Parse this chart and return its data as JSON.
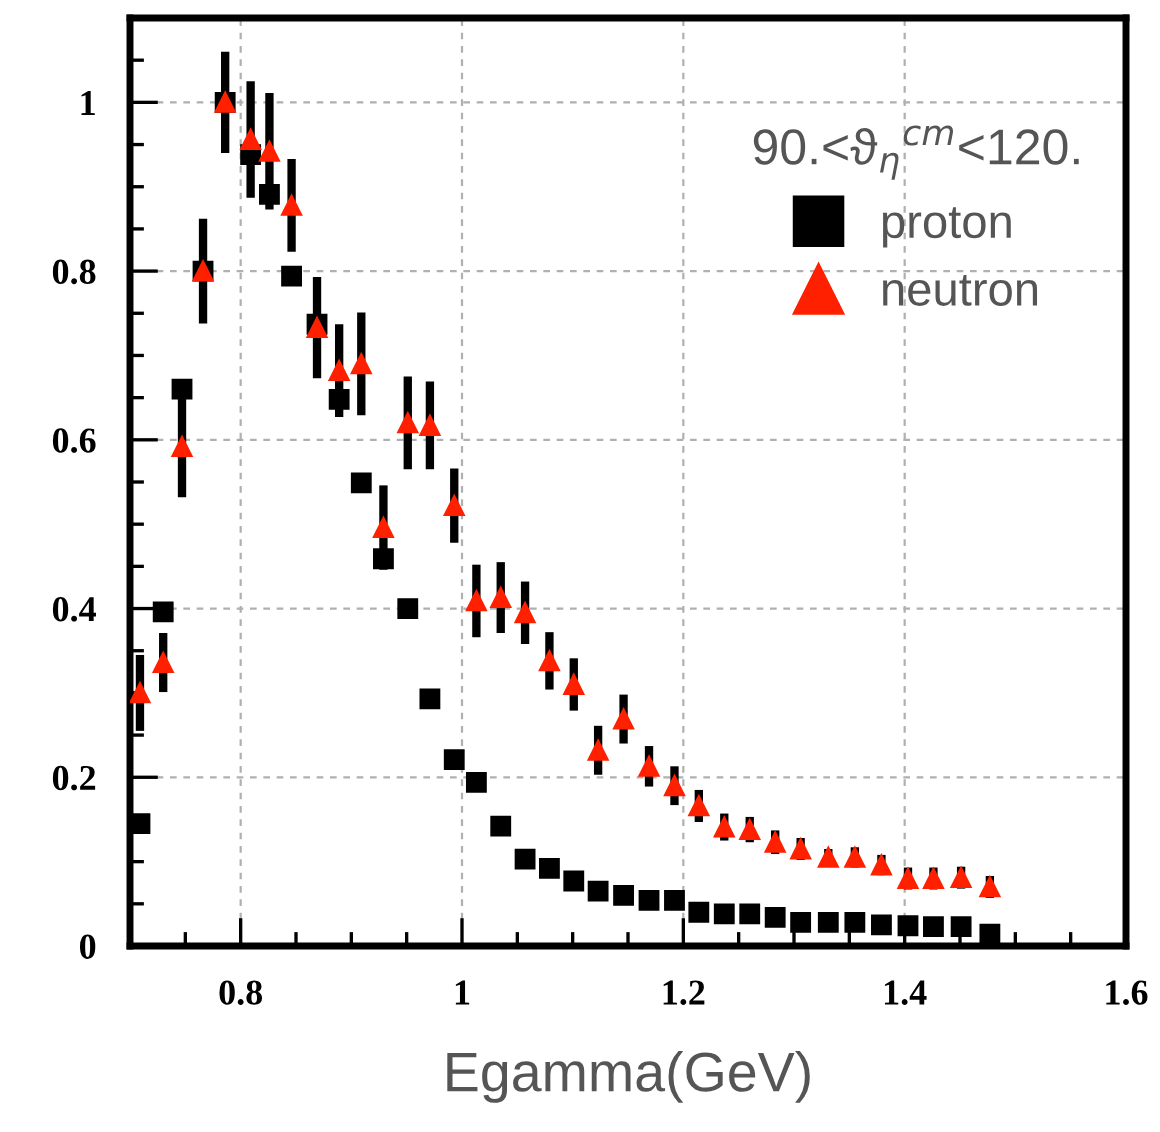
{
  "chart_data": {
    "type": "scatter",
    "xlabel": "Egamma(GeV)",
    "legend_title": "90.<ϑ$_{η}$$^{cm}$<120.",
    "legend": "top right",
    "grid": true,
    "xlim": [
      0.7,
      1.6
    ],
    "xticks": [
      0.8,
      1,
      1.2,
      1.4,
      1.6
    ],
    "ylim": [
      0,
      1.1
    ],
    "yticks": [
      0,
      0.2,
      0.4,
      0.6,
      0.8,
      1
    ],
    "series": [
      {
        "name": "proton",
        "color": "#000000",
        "marker": "square",
        "x": [
          0.709,
          0.73,
          0.747,
          0.766,
          0.786,
          0.809,
          0.826,
          0.846,
          0.869,
          0.889,
          0.909,
          0.929,
          0.951,
          0.971,
          0.993,
          1.013,
          1.035,
          1.057,
          1.079,
          1.101,
          1.123,
          1.146,
          1.169,
          1.192,
          1.214,
          1.237,
          1.26,
          1.283,
          1.306,
          1.331,
          1.355,
          1.379,
          1.403,
          1.426,
          1.451,
          1.477
        ],
        "values": [
          0.145,
          0.396,
          0.66,
          0.8,
          1.0,
          0.938,
          0.891,
          0.794,
          0.737,
          0.648,
          0.549,
          0.459,
          0.4,
          0.293,
          0.221,
          0.194,
          0.142,
          0.103,
          0.092,
          0.077,
          0.065,
          0.06,
          0.054,
          0.054,
          0.04,
          0.038,
          0.038,
          0.034,
          0.028,
          0.028,
          0.028,
          0.025,
          0.024,
          0.023,
          0.023,
          0.014
        ]
      },
      {
        "name": "neutron",
        "color": "#ff2000",
        "marker": "triangle",
        "x": [
          0.709,
          0.73,
          0.747,
          0.766,
          0.786,
          0.809,
          0.826,
          0.846,
          0.869,
          0.889,
          0.909,
          0.929,
          0.951,
          0.971,
          0.993,
          1.013,
          1.035,
          1.057,
          1.079,
          1.101,
          1.123,
          1.146,
          1.169,
          1.192,
          1.214,
          1.237,
          1.26,
          1.283,
          1.306,
          1.331,
          1.355,
          1.379,
          1.403,
          1.426,
          1.451,
          1.477
        ],
        "values": [
          0.3,
          0.336,
          0.592,
          0.8,
          1.0,
          0.956,
          0.942,
          0.878,
          0.733,
          0.682,
          0.69,
          0.496,
          0.62,
          0.617,
          0.522,
          0.409,
          0.413,
          0.395,
          0.338,
          0.31,
          0.232,
          0.269,
          0.213,
          0.19,
          0.166,
          0.141,
          0.138,
          0.123,
          0.115,
          0.105,
          0.105,
          0.096,
          0.08,
          0.08,
          0.081,
          0.07
        ],
        "errors": [
          0.045,
          0.035,
          0.06,
          0.062,
          0.06,
          0.069,
          0.069,
          0.055,
          0.06,
          0.055,
          0.061,
          0.05,
          0.055,
          0.052,
          0.044,
          0.043,
          0.042,
          0.037,
          0.034,
          0.031,
          0.029,
          0.029,
          0.024,
          0.023,
          0.019,
          0.016,
          0.015,
          0.014,
          0.013,
          0.01,
          0.012,
          0.012,
          0.013,
          0.013,
          0.013,
          0.013
        ]
      }
    ]
  }
}
